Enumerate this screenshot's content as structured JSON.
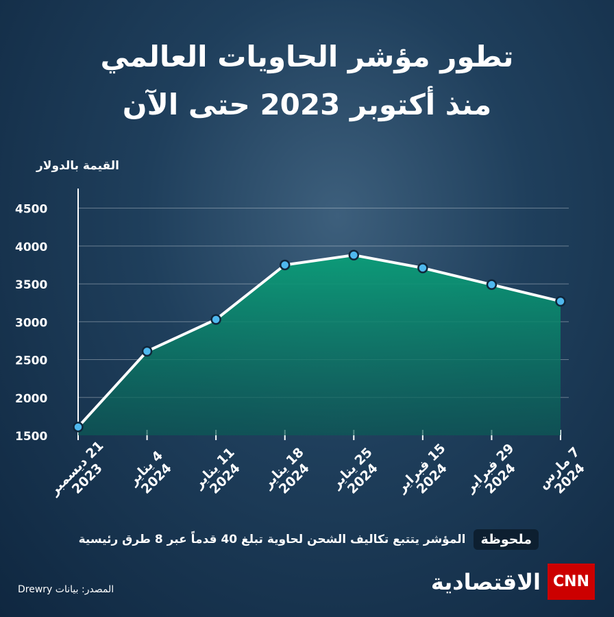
{
  "chart_data": {
    "type": "area",
    "title": "تطور مؤشر الحاويات العالمي",
    "subtitle": "منذ أكتوبر 2023 حتى الآن",
    "y_label": "القيمة بالدولار",
    "categories": [
      "21 ديسمبر\n2023",
      "4 يناير\n2024",
      "11 يناير\n2024",
      "18 يناير\n2024",
      "25 يناير\n2024",
      "15 فبراير\n2024",
      "29 فبراير\n2024",
      "7 مارس\n2024"
    ],
    "values": [
      1610,
      2610,
      3030,
      3750,
      3880,
      3710,
      3490,
      3270
    ],
    "color": "#ffffff",
    "marker_color": "#4fb8ee",
    "ylim": [
      1500,
      4750
    ],
    "yticks": [
      1500,
      2000,
      2500,
      3000,
      3500,
      4000,
      4500
    ],
    "grid": true
  },
  "note": {
    "label": "ملحوظة",
    "text": "المؤشر يتتبع تكاليف الشحن لحاوية تبلغ 40 قدماً عبر 8 طرق رئيسية"
  },
  "source": "المصدر: بيانات Drewry",
  "brand": {
    "name": "الاقتصادية",
    "network": "CNN"
  }
}
